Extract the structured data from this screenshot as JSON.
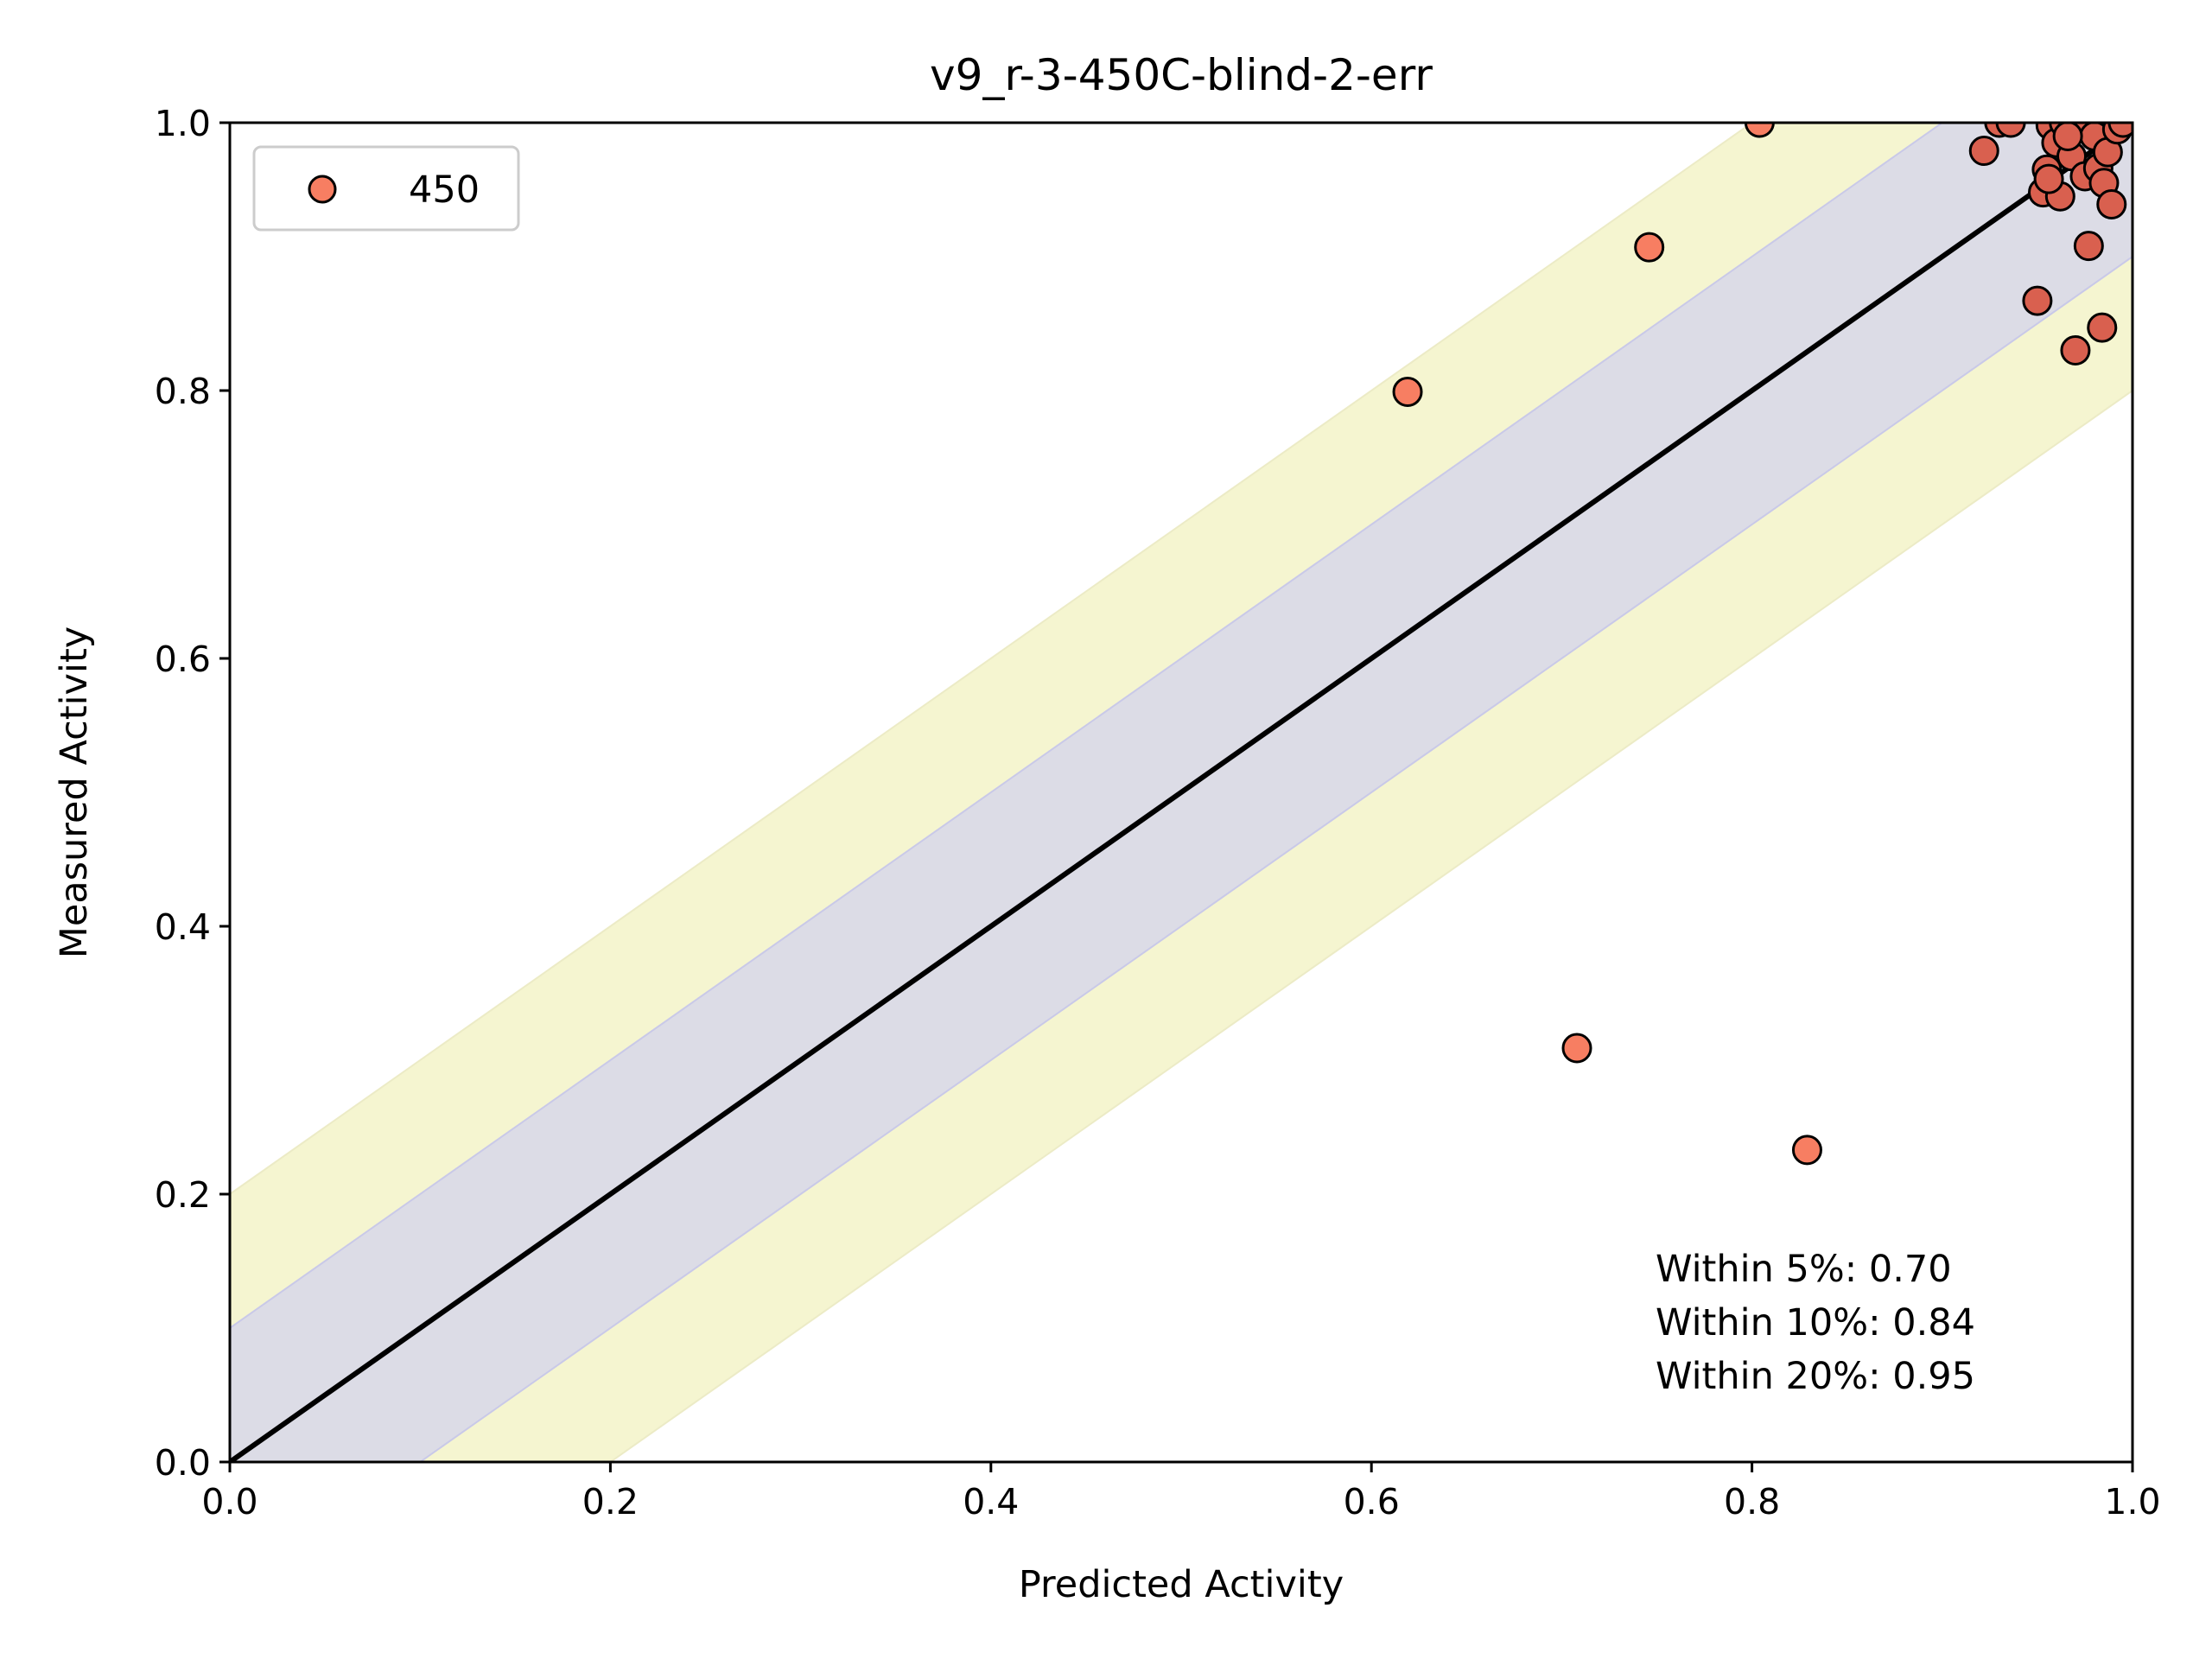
{
  "chart_data": {
    "type": "scatter",
    "title": "v9_r-3-450C-blind-2-err",
    "xlabel": "Predicted Activity",
    "ylabel": "Measured Activity",
    "xlim": [
      0.0,
      1.0
    ],
    "ylim": [
      0.0,
      1.0
    ],
    "xticks": [
      "0.0",
      "0.2",
      "0.4",
      "0.6",
      "0.8",
      "1.0"
    ],
    "yticks": [
      "0.0",
      "0.2",
      "0.4",
      "0.6",
      "0.8",
      "1.0"
    ],
    "grid": false,
    "legend": {
      "placement": "top-left",
      "entries": [
        "450"
      ]
    },
    "reference_line": {
      "from": [
        0,
        0
      ],
      "to": [
        1,
        1
      ],
      "color": "#000000"
    },
    "bands": [
      {
        "offset": 0.2,
        "color": "#f5f5d0"
      },
      {
        "offset": 0.1,
        "color": "#dcdce6"
      }
    ],
    "annotations": [
      "Within 5%: 0.70",
      "Within 10%: 0.84",
      "Within 20%: 0.95"
    ],
    "colors": {
      "marker_fill_light": "#f77e62",
      "marker_fill_dark": "#d9604f",
      "marker_edge": "#000000"
    },
    "series": [
      {
        "name": "450",
        "points": [
          {
            "x": 0.619,
            "y": 0.799
          },
          {
            "x": 0.746,
            "y": 0.907
          },
          {
            "x": 0.804,
            "y": 1.0
          },
          {
            "x": 0.708,
            "y": 0.309
          },
          {
            "x": 0.829,
            "y": 0.233
          },
          {
            "x": 0.922,
            "y": 0.979
          },
          {
            "x": 0.93,
            "y": 1.0
          },
          {
            "x": 0.936,
            "y": 1.0
          },
          {
            "x": 0.95,
            "y": 0.867
          },
          {
            "x": 0.953,
            "y": 0.948
          },
          {
            "x": 0.955,
            "y": 0.965
          },
          {
            "x": 0.957,
            "y": 0.998
          },
          {
            "x": 0.96,
            "y": 0.985
          },
          {
            "x": 0.962,
            "y": 0.945
          },
          {
            "x": 0.964,
            "y": 1.0
          },
          {
            "x": 0.968,
            "y": 0.975
          },
          {
            "x": 0.97,
            "y": 0.83
          },
          {
            "x": 0.973,
            "y": 0.999
          },
          {
            "x": 0.975,
            "y": 0.96
          },
          {
            "x": 0.977,
            "y": 0.908
          },
          {
            "x": 0.98,
            "y": 0.99
          },
          {
            "x": 0.982,
            "y": 0.966
          },
          {
            "x": 0.984,
            "y": 0.847
          },
          {
            "x": 0.985,
            "y": 0.955
          },
          {
            "x": 0.987,
            "y": 0.978
          },
          {
            "x": 0.989,
            "y": 0.939
          },
          {
            "x": 0.992,
            "y": 0.995
          },
          {
            "x": 0.995,
            "y": 1.0
          },
          {
            "x": 0.956,
            "y": 0.958
          },
          {
            "x": 0.966,
            "y": 0.99
          }
        ]
      }
    ]
  }
}
